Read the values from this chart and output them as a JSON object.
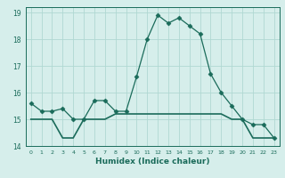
{
  "title": "",
  "xlabel": "Humidex (Indice chaleur)",
  "ylabel": "",
  "x": [
    0,
    1,
    2,
    3,
    4,
    5,
    6,
    7,
    8,
    9,
    10,
    11,
    12,
    13,
    14,
    15,
    16,
    17,
    18,
    19,
    20,
    21,
    22,
    23
  ],
  "line1": [
    15.6,
    15.3,
    15.3,
    15.4,
    15.0,
    15.0,
    15.7,
    15.7,
    15.3,
    15.3,
    16.6,
    18.0,
    18.9,
    18.6,
    18.8,
    18.5,
    18.2,
    16.7,
    16.0,
    15.5,
    15.0,
    14.8,
    14.8,
    14.3
  ],
  "line2": [
    15.0,
    15.0,
    15.0,
    14.3,
    14.3,
    15.0,
    15.0,
    15.0,
    15.2,
    15.2,
    15.2,
    15.2,
    15.2,
    15.2,
    15.2,
    15.2,
    15.2,
    15.2,
    15.2,
    15.0,
    15.0,
    14.3,
    14.3,
    14.3
  ],
  "xlim": [
    -0.5,
    23.5
  ],
  "ylim": [
    14.0,
    19.2
  ],
  "yticks": [
    14,
    15,
    16,
    17,
    18,
    19
  ],
  "xticks": [
    0,
    1,
    2,
    3,
    4,
    5,
    6,
    7,
    8,
    9,
    10,
    11,
    12,
    13,
    14,
    15,
    16,
    17,
    18,
    19,
    20,
    21,
    22,
    23
  ],
  "line_color": "#1a6b5a",
  "bg_color": "#d6eeeb",
  "grid_color": "#b0d8d2",
  "marker": "D",
  "marker_size": 2.5
}
